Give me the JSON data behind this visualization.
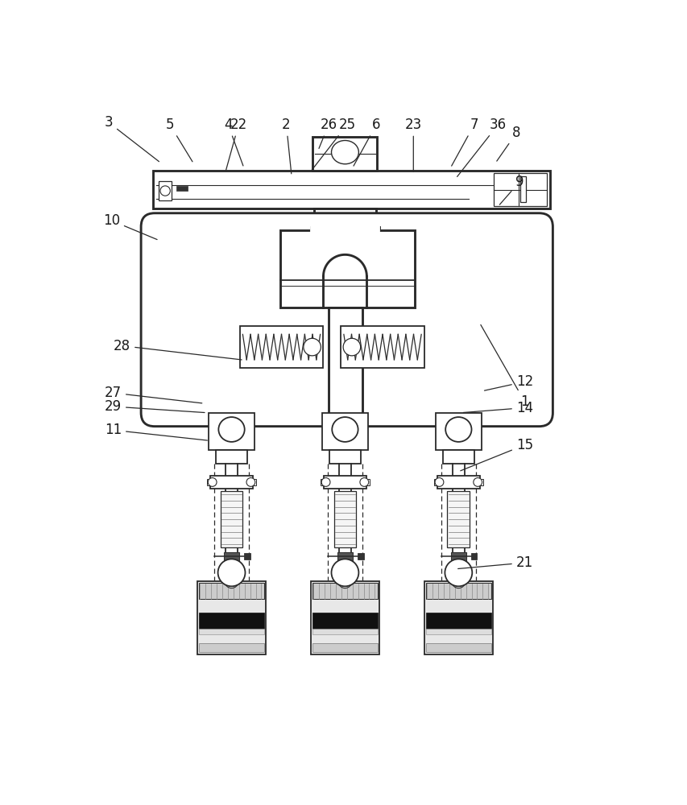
{
  "bg_color": "#ffffff",
  "lc": "#2a2a2a",
  "lw": 1.3,
  "figsize": [
    8.54,
    10.0
  ],
  "dpi": 100,
  "leaders": {
    "3": [
      0.04,
      0.958,
      0.138,
      0.893
    ],
    "5": [
      0.155,
      0.955,
      0.2,
      0.892
    ],
    "4": [
      0.265,
      0.955,
      0.295,
      0.885
    ],
    "2": [
      0.375,
      0.955,
      0.385,
      0.872
    ],
    "26": [
      0.455,
      0.955,
      0.435,
      0.913
    ],
    "6": [
      0.545,
      0.955,
      0.5,
      0.885
    ],
    "7": [
      0.73,
      0.955,
      0.685,
      0.885
    ],
    "8": [
      0.81,
      0.942,
      0.77,
      0.893
    ],
    "9": [
      0.815,
      0.862,
      0.775,
      0.823
    ],
    "10": [
      0.045,
      0.8,
      0.135,
      0.768
    ],
    "1": [
      0.825,
      0.508,
      0.74,
      0.635
    ],
    "28": [
      0.065,
      0.598,
      0.295,
      0.575
    ],
    "12": [
      0.825,
      0.54,
      0.745,
      0.525
    ],
    "27": [
      0.048,
      0.522,
      0.22,
      0.505
    ],
    "29": [
      0.048,
      0.5,
      0.225,
      0.49
    ],
    "14": [
      0.825,
      0.498,
      0.705,
      0.49
    ],
    "11": [
      0.048,
      0.462,
      0.23,
      0.445
    ],
    "15": [
      0.825,
      0.438,
      0.7,
      0.395
    ],
    "21": [
      0.825,
      0.248,
      0.695,
      0.238
    ],
    "22": [
      0.285,
      0.955,
      0.26,
      0.878
    ],
    "25": [
      0.49,
      0.955,
      0.42,
      0.878
    ],
    "23": [
      0.615,
      0.955,
      0.615,
      0.875
    ],
    "36": [
      0.775,
      0.955,
      0.695,
      0.868
    ]
  }
}
